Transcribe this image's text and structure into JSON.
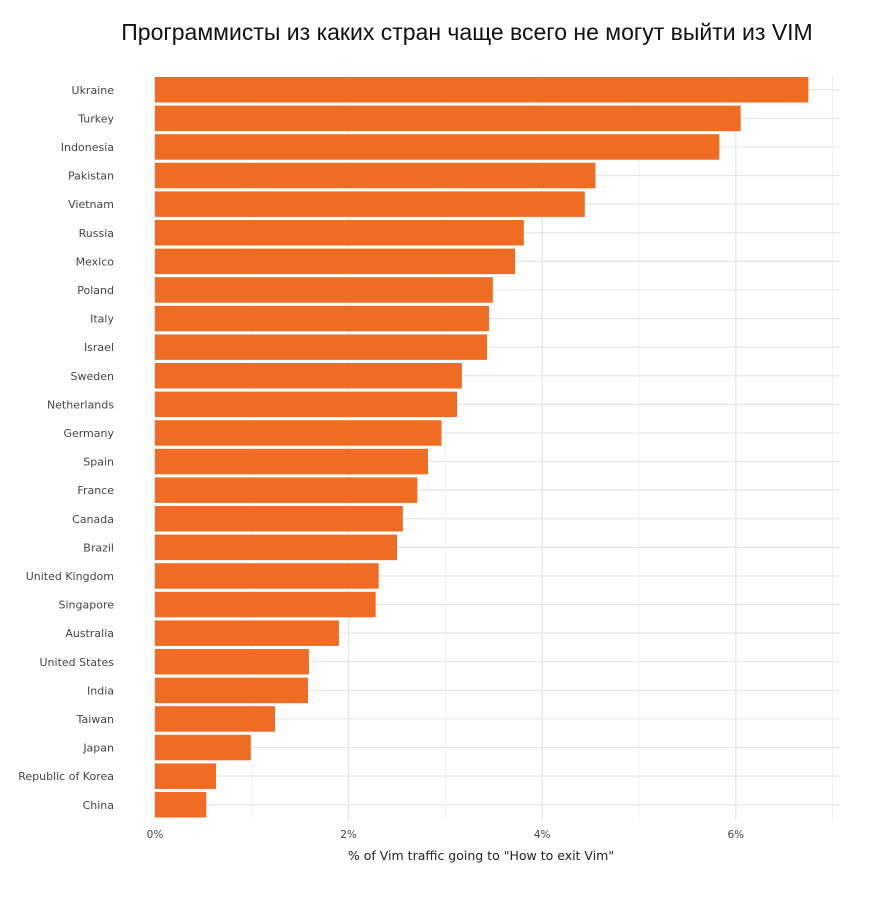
{
  "chart_data": {
    "type": "bar",
    "orientation": "horizontal",
    "title": "Программисты из каких стран чаще всего не могут выйти из VIM",
    "xlabel": "% of Vim traffic going to \"How to exit Vim\"",
    "ylabel": "",
    "xlim": [
      0,
      7
    ],
    "x_ticks": [
      0,
      2,
      4,
      6
    ],
    "x_tick_labels": [
      "0%",
      "2%",
      "4%",
      "6%"
    ],
    "grid": true,
    "legend": "none",
    "bar_color": "#EF6C22",
    "categories": [
      "Ukraine",
      "Turkey",
      "Indonesia",
      "Pakistan",
      "Vietnam",
      "Russia",
      "Mexico",
      "Poland",
      "Italy",
      "Israel",
      "Sweden",
      "Netherlands",
      "Germany",
      "Spain",
      "France",
      "Canada",
      "Brazil",
      "United Kingdom",
      "Singapore",
      "Australia",
      "United States",
      "India",
      "Taiwan",
      "Japan",
      "Republic of Korea",
      "China"
    ],
    "values": [
      6.75,
      6.05,
      5.83,
      4.55,
      4.44,
      3.81,
      3.72,
      3.49,
      3.45,
      3.43,
      3.17,
      3.12,
      2.96,
      2.82,
      2.71,
      2.56,
      2.5,
      2.31,
      2.28,
      1.9,
      1.59,
      1.58,
      1.24,
      0.99,
      0.63,
      0.53
    ]
  }
}
